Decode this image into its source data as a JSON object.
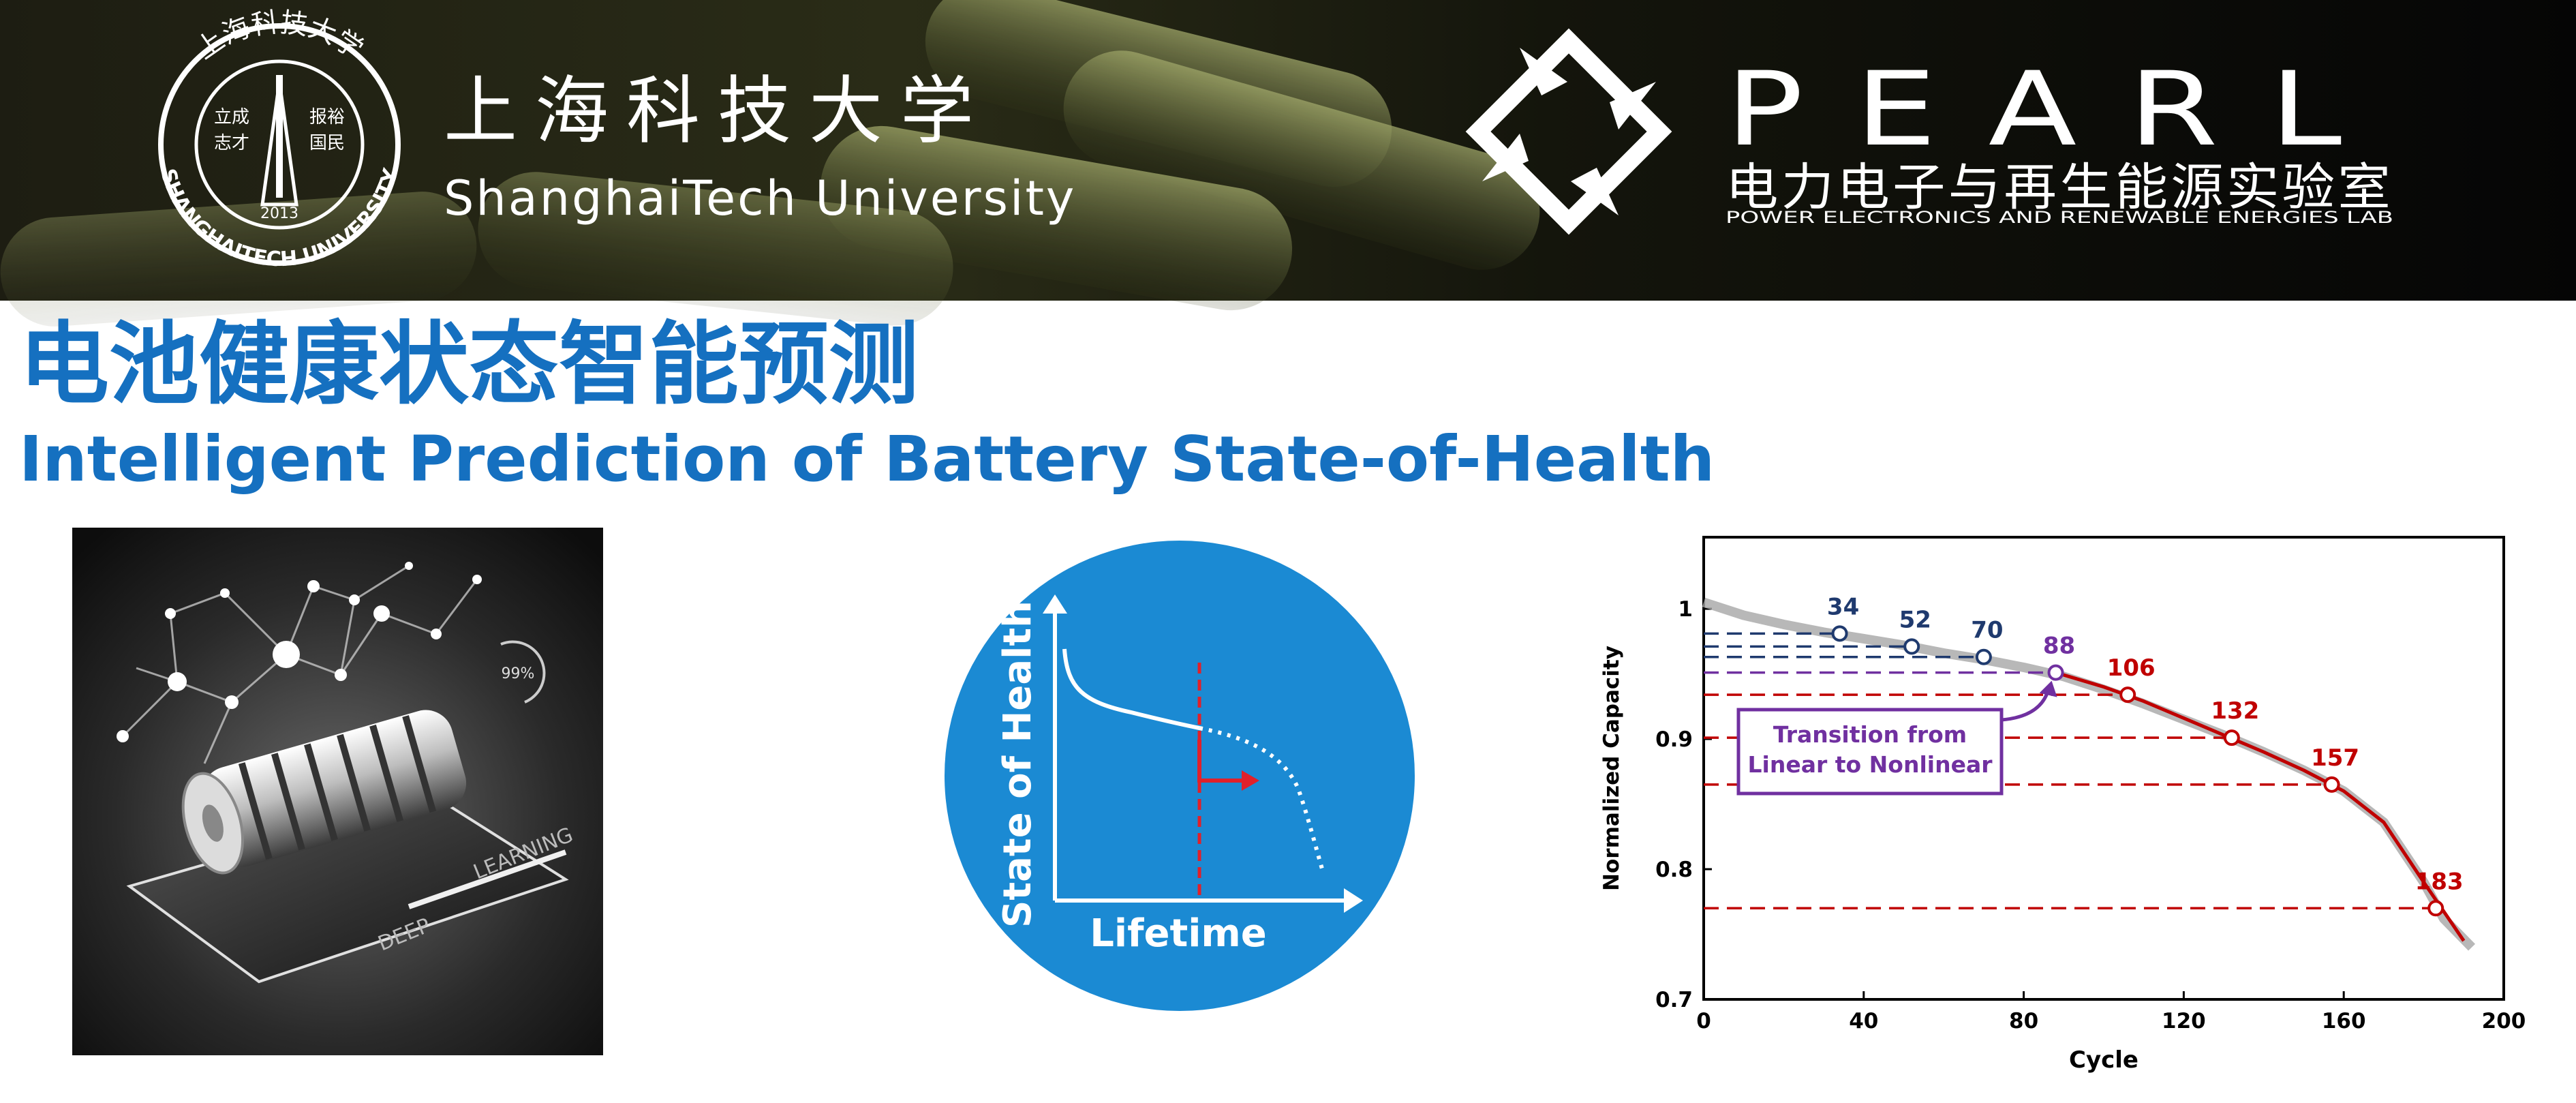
{
  "header": {
    "university": {
      "name_cn": "上海科技大学",
      "name_en": "ShanghaiTech University",
      "seal": {
        "ring_text_cn": "上海科技大学",
        "ring_text_en": "SHANGHAITECH UNIVERSITY",
        "motto": [
          "立成",
          "志才",
          "报裕",
          "国民"
        ],
        "year": "2013"
      }
    },
    "lab": {
      "name": "PEARL",
      "name_cn": "电力电子与再生能源实验室",
      "name_en": "POWER ELECTRONICS AND RENEWABLE ENERGIES LAB"
    }
  },
  "title": {
    "cn": "电池健康状态智能预测",
    "en": "Intelligent Prediction of Battery State-of-Health"
  },
  "illustration": {
    "percent": "99%",
    "words": [
      "DEEP",
      "LEARNING"
    ]
  },
  "soh_diagram": {
    "ylabel": "State of Health",
    "xlabel": "Lifetime"
  },
  "chart_data": {
    "type": "line",
    "xlabel": "Cycle",
    "ylabel": "Normalized Capacity",
    "xlim": [
      0,
      200
    ],
    "ylim": [
      0.7,
      1.055
    ],
    "xticks": [
      0,
      40,
      80,
      120,
      160,
      200
    ],
    "yticks": [
      0.7,
      0.8,
      0.9,
      1
    ],
    "series": [
      {
        "color": "#a6a6a6",
        "x": [
          0,
          10,
          20,
          30,
          40,
          50,
          60,
          70,
          80,
          90,
          100,
          110,
          120,
          130,
          140,
          150,
          160,
          170,
          180,
          185,
          192
        ],
        "values": [
          1.005,
          0.995,
          0.988,
          0.982,
          0.977,
          0.972,
          0.966,
          0.961,
          0.955,
          0.948,
          0.938,
          0.927,
          0.915,
          0.903,
          0.89,
          0.876,
          0.86,
          0.836,
          0.79,
          0.762,
          0.74
        ]
      },
      {
        "color": "#c00000",
        "x": [
          88,
          100,
          110,
          120,
          130,
          140,
          150,
          160,
          170,
          180,
          190
        ],
        "values": [
          0.951,
          0.94,
          0.929,
          0.916,
          0.903,
          0.89,
          0.876,
          0.86,
          0.836,
          0.79,
          0.745
        ]
      },
      {
        "type": "scatter",
        "x": [
          34,
          52,
          70,
          88,
          106,
          132,
          157,
          183
        ],
        "values": [
          0.981,
          0.971,
          0.963,
          0.951,
          0.934,
          0.901,
          0.865,
          0.77
        ],
        "colors": [
          "#1f3a6e",
          "#1f3a6e",
          "#1f3a6e",
          "#7030a0",
          "#c00000",
          "#c00000",
          "#c00000",
          "#c00000"
        ]
      }
    ],
    "annotation": {
      "lines": [
        "Transition from",
        "Linear to Nonlinear"
      ],
      "color": "#7030a0"
    }
  }
}
